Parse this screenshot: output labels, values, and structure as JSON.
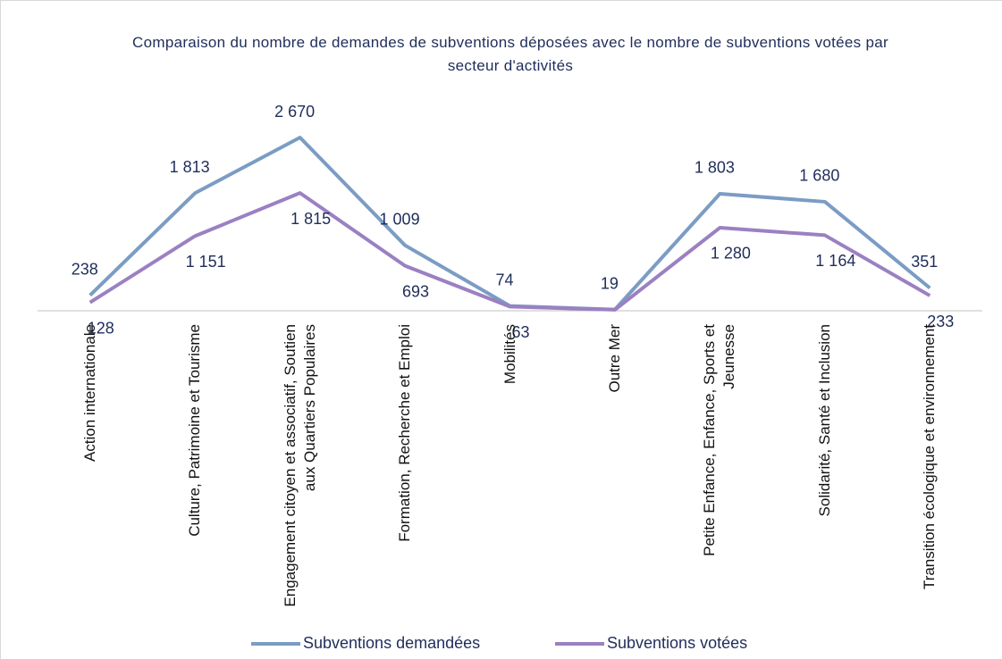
{
  "chart_data": {
    "type": "line",
    "title": "Comparaison du nombre de demandes de subventions déposées avec le nombre de subventions votées par secteur d'activités",
    "categories": [
      "Action internationale",
      "Culture, Patrimoine et Tourisme",
      "Engagement citoyen et associatif, Soutien aux Quartiers Populaires",
      "Formation, Recherche et Emploi",
      "Mobilités",
      "Outre Mer",
      "Petite Enfance, Enfance, Sports et Jeunesse",
      "Solidarité, Santé et Inclusion",
      "Transition écologique et environnement"
    ],
    "series": [
      {
        "name": "Subventions demandées",
        "color": "#7b9cc4",
        "values": [
          238,
          1813,
          2670,
          1009,
          74,
          19,
          1803,
          1680,
          351
        ],
        "value_labels": [
          "238",
          "1 813",
          "2 670",
          "1 009",
          "74",
          "19",
          "1 803",
          "1 680",
          "351"
        ]
      },
      {
        "name": "Subventions votées",
        "color": "#9b80c2",
        "values": [
          128,
          1151,
          1815,
          693,
          63,
          15,
          1280,
          1164,
          233
        ],
        "value_labels": [
          "128",
          "1 151",
          "1 815",
          "693",
          "63",
          null,
          "1 280",
          "1 164",
          "233"
        ]
      }
    ],
    "legend": "bottom"
  }
}
